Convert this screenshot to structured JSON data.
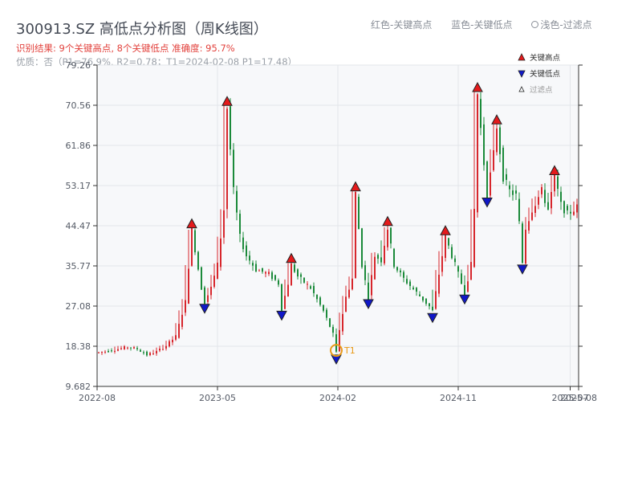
{
  "header": {
    "title": "300913.SZ 高低点分析图（周K线图）",
    "subtitle": "识别结果: 9个关键高点, 8个关键低点  准确度: 95.7%",
    "subtitle2": "优质：否（P1=76.9%, R2=0.78；T1=2024-02-08 P1=17.48）",
    "legend_red": "红色-关键高点",
    "legend_blue": "蓝色-关键低点",
    "legend_light": "浅色-过滤点"
  },
  "colors": {
    "up": "#d7262c",
    "down": "#1b8a3a",
    "high_marker": "#e41a1c",
    "low_marker": "#1018c8",
    "annotation": "#e89a18",
    "plot_bg": "#f7f8fa",
    "grid": "#e3e6ea"
  },
  "chart_data": {
    "type": "candlestick",
    "title": "300913.SZ 高低点分析图（周K线图）",
    "y_ticks": [
      "9.682",
      "18.38",
      "27.08",
      "35.77",
      "44.47",
      "53.17",
      "61.86",
      "70.56",
      "79.26"
    ],
    "ylim": [
      9.682,
      79.26
    ],
    "x_ticks": [
      "2022-08",
      "2023-05",
      "2024-02",
      "2024-11",
      "2025-07",
      "2025-08"
    ],
    "grid": true,
    "legend": {
      "position": "top-right",
      "entries": [
        "关键高点",
        "关键低点",
        "过滤点"
      ]
    },
    "price_path": [
      [
        0,
        17.0
      ],
      [
        4,
        17.5
      ],
      [
        9,
        18.2
      ],
      [
        12,
        17.8
      ],
      [
        15,
        16.5
      ],
      [
        18,
        17.2
      ],
      [
        21,
        18.5
      ],
      [
        24,
        20.5
      ],
      [
        27,
        28.0
      ],
      [
        29,
        43.5
      ],
      [
        32,
        31.0
      ],
      [
        33,
        28.0
      ],
      [
        35,
        31.0
      ],
      [
        37,
        36.0
      ],
      [
        39,
        48.0
      ],
      [
        40,
        70.0
      ],
      [
        42,
        52.0
      ],
      [
        44,
        42.0
      ],
      [
        46,
        38.0
      ],
      [
        49,
        35.0
      ],
      [
        53,
        34.0
      ],
      [
        56,
        32.0
      ],
      [
        57,
        26.5
      ],
      [
        59,
        32.0
      ],
      [
        60,
        36.0
      ],
      [
        62,
        33.5
      ],
      [
        66,
        31.0
      ],
      [
        70,
        26.0
      ],
      [
        73,
        21.0
      ],
      [
        74,
        17.0
      ],
      [
        75,
        22.0
      ],
      [
        77,
        29.0
      ],
      [
        79,
        33.0
      ],
      [
        80,
        51.5
      ],
      [
        82,
        36.0
      ],
      [
        84,
        29.0
      ],
      [
        86,
        38.0
      ],
      [
        88,
        37.0
      ],
      [
        90,
        44.0
      ],
      [
        92,
        36.0
      ],
      [
        95,
        33.0
      ],
      [
        99,
        30.0
      ],
      [
        103,
        27.0
      ],
      [
        104,
        26.0
      ],
      [
        106,
        34.0
      ],
      [
        108,
        42.0
      ],
      [
        110,
        38.0
      ],
      [
        112,
        34.0
      ],
      [
        114,
        30.0
      ],
      [
        116,
        36.0
      ],
      [
        117,
        48.0
      ],
      [
        118,
        73.0
      ],
      [
        120,
        58.0
      ],
      [
        121,
        51.0
      ],
      [
        123,
        60.0
      ],
      [
        124,
        66.0
      ],
      [
        126,
        55.0
      ],
      [
        128,
        52.0
      ],
      [
        130,
        51.0
      ],
      [
        131,
        45.0
      ],
      [
        132,
        36.5
      ],
      [
        133,
        44.0
      ],
      [
        135,
        48.0
      ],
      [
        138,
        52.0
      ],
      [
        140,
        48.0
      ],
      [
        142,
        55.0
      ],
      [
        144,
        49.0
      ],
      [
        146,
        47.0
      ],
      [
        150,
        49.0
      ]
    ],
    "key_highs": [
      {
        "x": 29,
        "price": 43.5
      },
      {
        "x": 40,
        "price": 70.0
      },
      {
        "x": 60,
        "price": 36.0
      },
      {
        "x": 80,
        "price": 51.5
      },
      {
        "x": 90,
        "price": 44.0
      },
      {
        "x": 108,
        "price": 42.0
      },
      {
        "x": 118,
        "price": 73.0
      },
      {
        "x": 124,
        "price": 66.0
      },
      {
        "x": 142,
        "price": 55.0
      }
    ],
    "key_lows": [
      {
        "x": 33,
        "price": 28.0
      },
      {
        "x": 57,
        "price": 26.5
      },
      {
        "x": 74,
        "price": 17.0
      },
      {
        "x": 84,
        "price": 29.0
      },
      {
        "x": 104,
        "price": 26.0
      },
      {
        "x": 114,
        "price": 30.0
      },
      {
        "x": 121,
        "price": 51.0
      },
      {
        "x": 132,
        "price": 36.5
      }
    ],
    "annotations": [
      {
        "label": "T1",
        "x": 74,
        "price": 17.48
      }
    ]
  }
}
